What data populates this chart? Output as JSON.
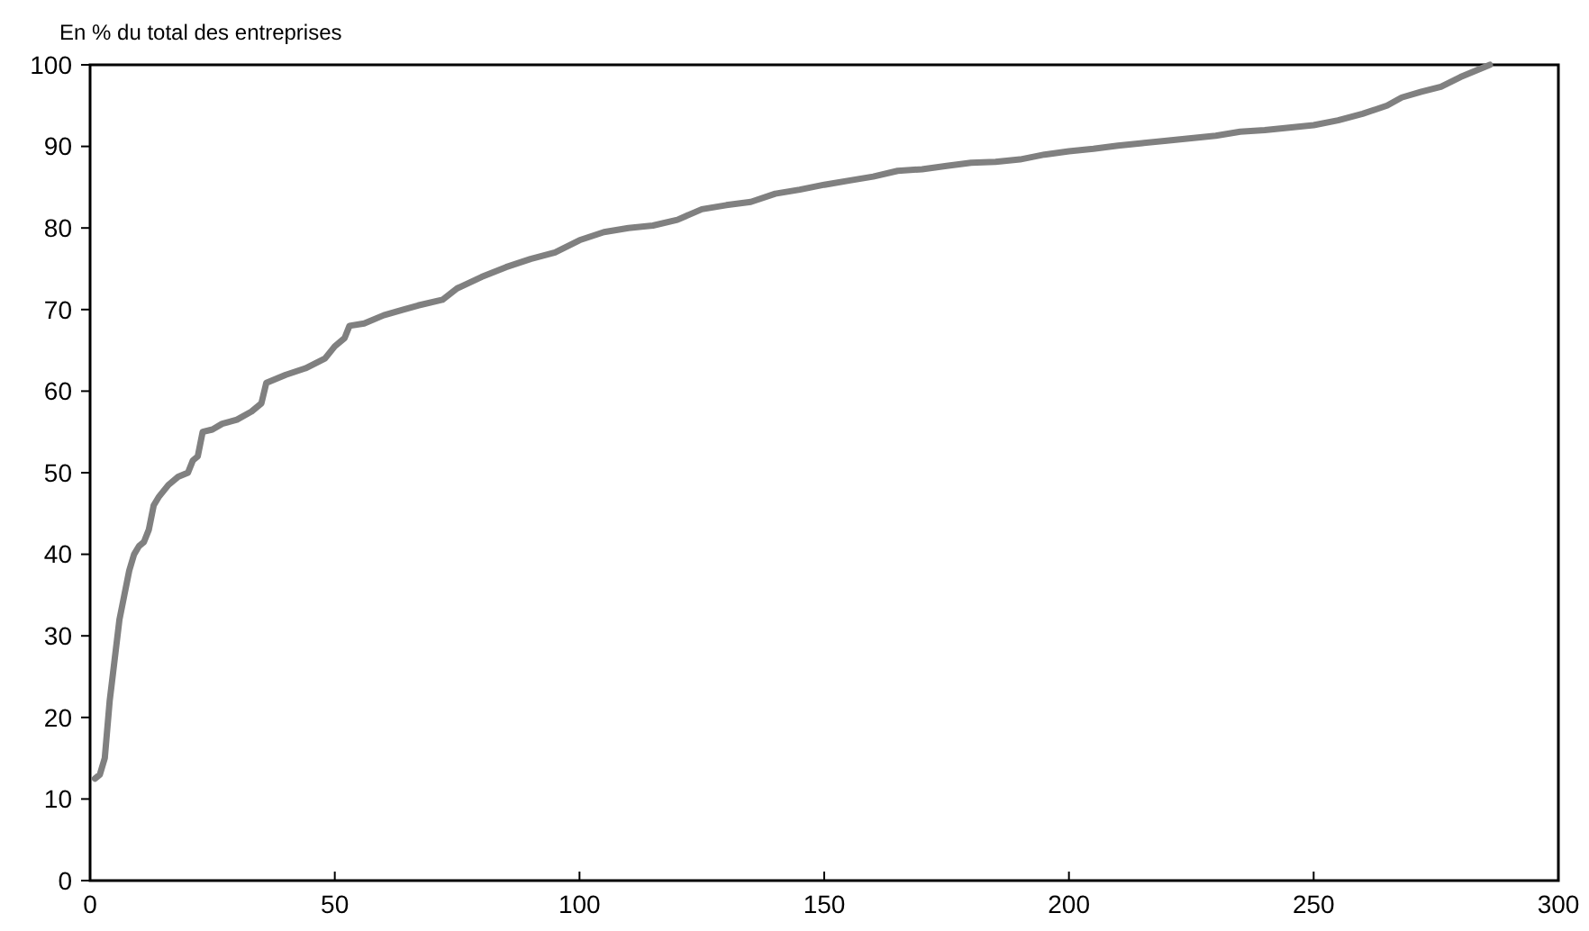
{
  "chart_data": {
    "type": "line",
    "ylabel": "En % du total des entreprises",
    "x": [
      1,
      2,
      3,
      4,
      5,
      6,
      7,
      8,
      9,
      10,
      11,
      12,
      13,
      14,
      16,
      18,
      20,
      21,
      22,
      23,
      25,
      27,
      30,
      33,
      35,
      36,
      38,
      40,
      44,
      48,
      50,
      52,
      53,
      56,
      60,
      64,
      67,
      72,
      75,
      80,
      85,
      90,
      95,
      100,
      105,
      110,
      115,
      120,
      125,
      130,
      135,
      140,
      145,
      150,
      155,
      160,
      165,
      170,
      175,
      180,
      185,
      190,
      195,
      200,
      205,
      210,
      215,
      220,
      225,
      230,
      235,
      240,
      245,
      250,
      255,
      260,
      265,
      268,
      272,
      276,
      280,
      284,
      286
    ],
    "series": [
      {
        "color": "#808080",
        "values": [
          12.5,
          13,
          15,
          22,
          27,
          32,
          35,
          38,
          40,
          41,
          41.5,
          43,
          46,
          47,
          48.5,
          49.5,
          50,
          51.5,
          52,
          55,
          55.3,
          56,
          56.5,
          57.5,
          58.5,
          61,
          61.5,
          62,
          62.8,
          64,
          65.5,
          66.5,
          68,
          68.3,
          69.3,
          70,
          70.5,
          71.2,
          72.6,
          74,
          75.2,
          76.2,
          77,
          78.5,
          79.5,
          80,
          80.3,
          81,
          82.3,
          82.8,
          83.2,
          84.2,
          84.7,
          85.3,
          85.8,
          86.3,
          87,
          87.2,
          87.6,
          88,
          88.1,
          88.4,
          89,
          89.4,
          89.7,
          90.1,
          90.4,
          90.7,
          91,
          91.3,
          91.8,
          92,
          92.3,
          92.6,
          93.2,
          94,
          95,
          96,
          96.7,
          97.3,
          98.5,
          99.5,
          100
        ]
      }
    ],
    "xlim": [
      0,
      300
    ],
    "xticks": [
      0,
      50,
      100,
      150,
      200,
      250,
      300
    ],
    "ylim": [
      0,
      100
    ],
    "yticks": [
      0,
      10,
      20,
      30,
      40,
      50,
      60,
      70,
      80,
      90,
      100
    ],
    "grid": false,
    "marker": "none",
    "line_style": "solid"
  }
}
